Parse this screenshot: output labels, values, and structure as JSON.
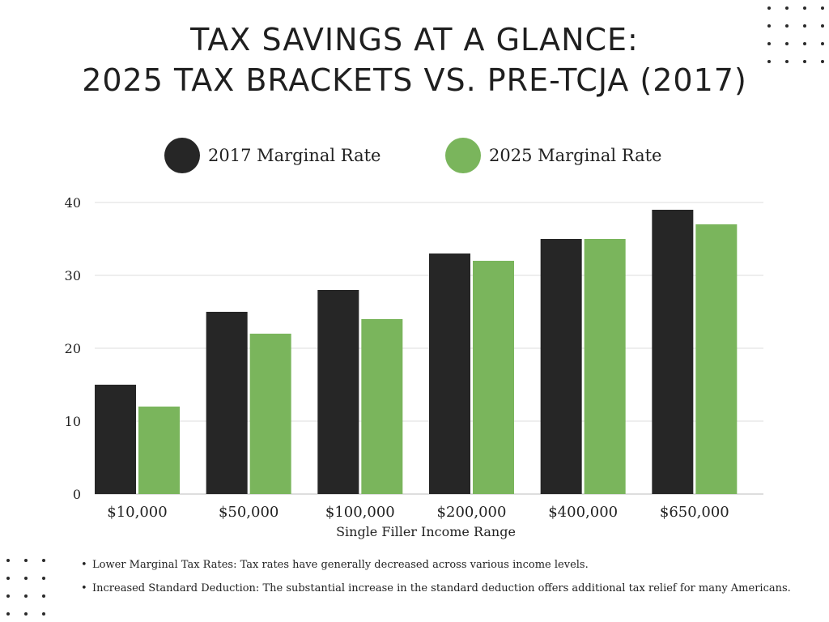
{
  "header": {
    "title_line1": "TAX SAVINGS AT A GLANCE:",
    "title_line2": "2025 TAX BRACKETS VS. PRE-TCJA (2017)"
  },
  "notes": [
    "Lower Marginal Tax Rates: Tax rates have generally decreased across various income levels.",
    "Increased Standard Deduction: The substantial increase in the standard deduction offers additional tax relief for many Americans."
  ],
  "chart_data": {
    "type": "bar",
    "title": "TAX SAVINGS AT A GLANCE: 2025 TAX BRACKETS VS. PRE-TCJA (2017)",
    "xlabel": "Single Filler Income Range",
    "ylabel": "",
    "categories": [
      "$10,000",
      "$50,000",
      "$100,000",
      "$200,000",
      "$400,000",
      "$650,000"
    ],
    "series": [
      {
        "name": "2017 Marginal Rate",
        "color": "#262626",
        "values": [
          15,
          25,
          28,
          33,
          35,
          39
        ]
      },
      {
        "name": "2025 Marginal Rate",
        "color": "#7ab55c",
        "values": [
          12,
          22,
          24,
          32,
          35,
          37
        ]
      }
    ],
    "ylim": [
      0,
      40
    ],
    "yticks": [
      0,
      10,
      20,
      30,
      40
    ],
    "grid": true,
    "legend": "top-center"
  }
}
